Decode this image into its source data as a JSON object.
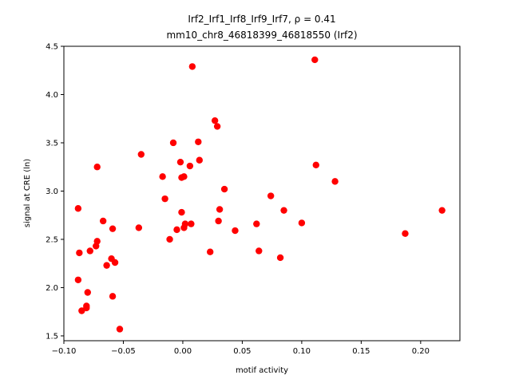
{
  "chart_data": {
    "type": "scatter",
    "title_line1": "Irf2_Irf1_Irf8_Irf9_Irf7, ρ = 0.41",
    "title_line2": "mm10_chr8_46818399_46818550 (Irf2)",
    "xlabel": "motif activity",
    "ylabel": "signal at CRE (ln)",
    "xlim": [
      -0.1,
      0.233
    ],
    "ylim": [
      1.45,
      4.5
    ],
    "xticks": [
      -0.1,
      -0.05,
      0.0,
      0.05,
      0.1,
      0.15,
      0.2
    ],
    "xtick_labels": [
      "−0.10",
      "−0.05",
      "0.00",
      "0.05",
      "0.10",
      "0.15",
      "0.20"
    ],
    "yticks": [
      1.5,
      2.0,
      2.5,
      3.0,
      3.5,
      4.0,
      4.5
    ],
    "ytick_labels": [
      "1.5",
      "2.0",
      "2.5",
      "3.0",
      "3.5",
      "4.0",
      "4.5"
    ],
    "grid": false,
    "marker_color": "#ff0000",
    "points": [
      {
        "x": -0.088,
        "y": 2.82
      },
      {
        "x": -0.087,
        "y": 2.36
      },
      {
        "x": -0.088,
        "y": 2.08
      },
      {
        "x": -0.085,
        "y": 1.76
      },
      {
        "x": -0.081,
        "y": 1.81
      },
      {
        "x": -0.081,
        "y": 1.79
      },
      {
        "x": -0.08,
        "y": 1.95
      },
      {
        "x": -0.078,
        "y": 2.38
      },
      {
        "x": -0.073,
        "y": 2.43
      },
      {
        "x": -0.072,
        "y": 2.48
      },
      {
        "x": -0.072,
        "y": 3.25
      },
      {
        "x": -0.067,
        "y": 2.69
      },
      {
        "x": -0.064,
        "y": 2.23
      },
      {
        "x": -0.06,
        "y": 2.3
      },
      {
        "x": -0.059,
        "y": 2.61
      },
      {
        "x": -0.059,
        "y": 1.91
      },
      {
        "x": -0.057,
        "y": 2.26
      },
      {
        "x": -0.053,
        "y": 1.57
      },
      {
        "x": -0.037,
        "y": 2.62
      },
      {
        "x": -0.035,
        "y": 3.38
      },
      {
        "x": -0.017,
        "y": 3.15
      },
      {
        "x": -0.015,
        "y": 2.92
      },
      {
        "x": -0.011,
        "y": 2.5
      },
      {
        "x": -0.008,
        "y": 3.5
      },
      {
        "x": -0.005,
        "y": 2.6
      },
      {
        "x": -0.002,
        "y": 3.3
      },
      {
        "x": -0.001,
        "y": 3.14
      },
      {
        "x": -0.001,
        "y": 2.78
      },
      {
        "x": 0.001,
        "y": 3.15
      },
      {
        "x": 0.001,
        "y": 2.62
      },
      {
        "x": 0.002,
        "y": 2.66
      },
      {
        "x": 0.006,
        "y": 3.26
      },
      {
        "x": 0.007,
        "y": 2.66
      },
      {
        "x": 0.008,
        "y": 4.29
      },
      {
        "x": 0.013,
        "y": 3.51
      },
      {
        "x": 0.014,
        "y": 3.32
      },
      {
        "x": 0.023,
        "y": 2.37
      },
      {
        "x": 0.027,
        "y": 3.73
      },
      {
        "x": 0.029,
        "y": 3.67
      },
      {
        "x": 0.03,
        "y": 2.69
      },
      {
        "x": 0.031,
        "y": 2.81
      },
      {
        "x": 0.035,
        "y": 3.02
      },
      {
        "x": 0.044,
        "y": 2.59
      },
      {
        "x": 0.062,
        "y": 2.66
      },
      {
        "x": 0.064,
        "y": 2.38
      },
      {
        "x": 0.074,
        "y": 2.95
      },
      {
        "x": 0.082,
        "y": 2.31
      },
      {
        "x": 0.085,
        "y": 2.8
      },
      {
        "x": 0.1,
        "y": 2.67
      },
      {
        "x": 0.111,
        "y": 4.36
      },
      {
        "x": 0.112,
        "y": 3.27
      },
      {
        "x": 0.128,
        "y": 3.1
      },
      {
        "x": 0.187,
        "y": 2.56
      },
      {
        "x": 0.218,
        "y": 2.8
      }
    ]
  }
}
